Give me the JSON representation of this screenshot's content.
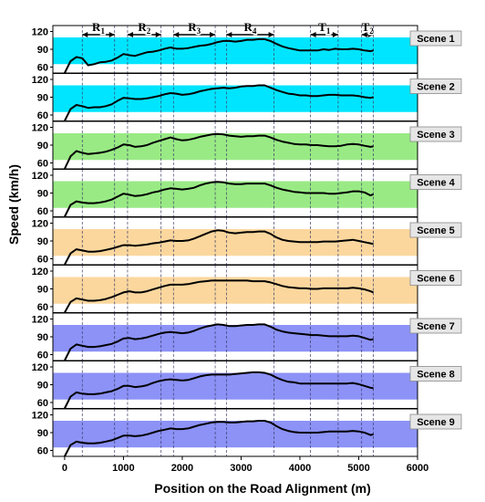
{
  "chart_data": {
    "type": "line",
    "xlabel": "Position on the Road Alignment (m)",
    "ylabel": "Speed (km/h)",
    "xlim": [
      -200,
      6000
    ],
    "ylim": [
      50,
      130
    ],
    "xticks": [
      0,
      1000,
      2000,
      3000,
      4000,
      5000,
      6000
    ],
    "yticks": [
      60,
      90,
      120
    ],
    "grid": false,
    "segments": [
      {
        "main": "R",
        "sub": "1",
        "start": 300,
        "end": 850
      },
      {
        "main": "R",
        "sub": "2",
        "start": 1070,
        "end": 1640
      },
      {
        "main": "R",
        "sub": "3",
        "start": 1850,
        "end": 2560
      },
      {
        "main": "R",
        "sub": "4",
        "start": 2750,
        "end": 3560
      },
      {
        "main": "T",
        "sub": "1",
        "start": 4180,
        "end": 4650
      },
      {
        "main": "T",
        "sub": "2",
        "start": 5050,
        "end": 5250
      }
    ],
    "boundaries": [
      300,
      850,
      1070,
      1640,
      1850,
      2560,
      2750,
      3560,
      4180,
      4650,
      5050,
      5250
    ],
    "band": [
      65,
      110
    ],
    "x": [
      0,
      100,
      200,
      300,
      400,
      500,
      600,
      700,
      800,
      900,
      1000,
      1100,
      1200,
      1300,
      1400,
      1500,
      1600,
      1700,
      1800,
      1900,
      2000,
      2100,
      2200,
      2300,
      2400,
      2500,
      2600,
      2700,
      2800,
      2900,
      3000,
      3100,
      3200,
      3300,
      3400,
      3500,
      3600,
      3700,
      3800,
      3900,
      4000,
      4100,
      4200,
      4300,
      4400,
      4500,
      4600,
      4700,
      4800,
      4900,
      5000,
      5100,
      5200,
      5250
    ],
    "series": [
      {
        "name": "Scene 1",
        "band_color": "#00e5ff",
        "values": [
          50,
          70,
          77,
          75,
          63,
          65,
          68,
          69,
          71,
          76,
          82,
          80,
          79,
          82,
          85,
          86,
          88,
          91,
          93,
          91,
          91,
          92,
          94,
          96,
          97,
          99,
          102,
          104,
          104,
          103,
          104,
          106,
          106,
          107,
          107,
          104,
          99,
          95,
          92,
          90,
          88,
          88,
          88,
          88,
          90,
          89,
          91,
          90,
          90,
          91,
          90,
          88,
          87,
          88
        ]
      },
      {
        "name": "Scene 2",
        "band_color": "#00e5ff",
        "values": [
          50,
          70,
          77,
          75,
          72,
          73,
          73,
          75,
          78,
          84,
          89,
          88,
          87,
          87,
          88,
          90,
          92,
          95,
          97,
          96,
          94,
          95,
          97,
          100,
          102,
          104,
          105,
          106,
          105,
          106,
          108,
          109,
          109,
          110,
          110,
          106,
          102,
          99,
          96,
          95,
          93,
          93,
          92,
          92,
          93,
          94,
          94,
          93,
          93,
          93,
          92,
          90,
          89,
          90
        ]
      },
      {
        "name": "Scene 3",
        "band_color": "#99ea85",
        "values": [
          50,
          71,
          80,
          77,
          75,
          76,
          77,
          79,
          82,
          86,
          91,
          90,
          87,
          88,
          90,
          94,
          97,
          100,
          103,
          100,
          98,
          99,
          101,
          104,
          106,
          108,
          109,
          108,
          106,
          105,
          104,
          105,
          105,
          106,
          106,
          103,
          99,
          96,
          94,
          92,
          91,
          91,
          90,
          90,
          89,
          88,
          88,
          89,
          91,
          92,
          91,
          89,
          87,
          88
        ]
      },
      {
        "name": "Scene 4",
        "band_color": "#99ea85",
        "values": [
          50,
          70,
          76,
          74,
          73,
          73,
          74,
          76,
          79,
          84,
          89,
          87,
          85,
          86,
          88,
          91,
          93,
          96,
          98,
          97,
          96,
          97,
          99,
          103,
          106,
          108,
          109,
          108,
          106,
          105,
          105,
          106,
          106,
          106,
          106,
          103,
          99,
          96,
          94,
          92,
          91,
          90,
          90,
          90,
          90,
          89,
          89,
          90,
          91,
          93,
          93,
          91,
          86,
          88
        ]
      },
      {
        "name": "Scene 5",
        "band_color": "#fbd79e",
        "values": [
          50,
          69,
          76,
          74,
          72,
          72,
          73,
          75,
          77,
          80,
          83,
          83,
          82,
          83,
          84,
          86,
          87,
          89,
          91,
          90,
          90,
          91,
          94,
          98,
          102,
          106,
          108,
          107,
          104,
          103,
          104,
          105,
          105,
          106,
          106,
          102,
          96,
          92,
          90,
          89,
          88,
          88,
          88,
          88,
          89,
          89,
          89,
          90,
          91,
          92,
          90,
          88,
          86,
          85
        ]
      },
      {
        "name": "Scene 6",
        "band_color": "#fbd79e",
        "values": [
          50,
          68,
          74,
          72,
          70,
          70,
          71,
          73,
          76,
          80,
          84,
          86,
          84,
          84,
          86,
          89,
          92,
          95,
          97,
          97,
          97,
          98,
          100,
          102,
          103,
          104,
          104,
          104,
          104,
          104,
          104,
          104,
          103,
          103,
          103,
          101,
          98,
          95,
          93,
          92,
          91,
          91,
          90,
          90,
          91,
          91,
          91,
          91,
          91,
          92,
          91,
          89,
          86,
          84
        ]
      },
      {
        "name": "Scene 7",
        "band_color": "#8c92f6",
        "values": [
          50,
          70,
          77,
          75,
          73,
          73,
          74,
          76,
          78,
          82,
          87,
          88,
          86,
          87,
          89,
          92,
          95,
          97,
          98,
          97,
          96,
          97,
          100,
          104,
          107,
          109,
          111,
          110,
          108,
          108,
          109,
          110,
          110,
          111,
          111,
          107,
          102,
          99,
          97,
          96,
          95,
          94,
          93,
          93,
          92,
          91,
          91,
          91,
          91,
          92,
          91,
          88,
          85,
          86
        ]
      },
      {
        "name": "Scene 8",
        "band_color": "#8c92f6",
        "values": [
          50,
          70,
          77,
          75,
          74,
          74,
          75,
          77,
          79,
          83,
          88,
          88,
          86,
          87,
          89,
          93,
          96,
          98,
          99,
          98,
          97,
          98,
          101,
          104,
          106,
          107,
          107,
          107,
          107,
          108,
          109,
          110,
          111,
          111,
          110,
          107,
          102,
          98,
          95,
          94,
          92,
          92,
          92,
          92,
          92,
          92,
          92,
          92,
          92,
          93,
          91,
          88,
          85,
          84
        ]
      },
      {
        "name": "Scene 9",
        "band_color": "#8c92f6",
        "values": [
          50,
          69,
          75,
          73,
          72,
          72,
          73,
          75,
          77,
          81,
          85,
          85,
          84,
          85,
          87,
          90,
          93,
          95,
          97,
          96,
          96,
          97,
          100,
          103,
          105,
          107,
          108,
          108,
          107,
          107,
          108,
          109,
          109,
          110,
          110,
          107,
          101,
          96,
          93,
          91,
          90,
          90,
          90,
          90,
          91,
          92,
          92,
          92,
          92,
          93,
          92,
          90,
          86,
          87
        ]
      }
    ]
  }
}
